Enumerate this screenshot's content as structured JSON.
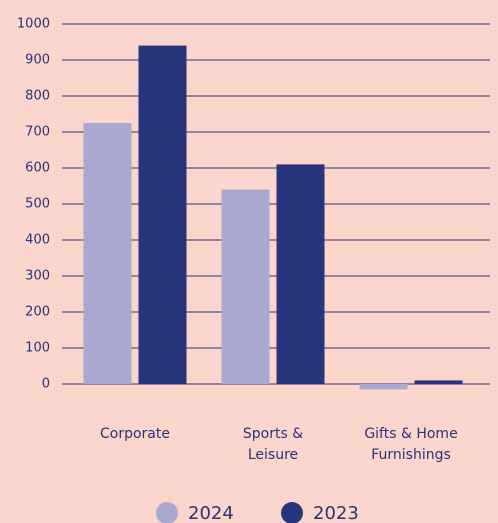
{
  "chart_data": {
    "type": "bar",
    "categories": [
      "Corporate",
      "Sports & Leisure",
      "Gifts & Home Furnishings"
    ],
    "series": [
      {
        "name": "2024",
        "color": "#a9a9d1",
        "values": [
          725,
          540,
          -15
        ]
      },
      {
        "name": "2023",
        "color": "#27337a",
        "values": [
          940,
          610,
          10
        ]
      }
    ],
    "ylim": [
      -20,
      1000
    ],
    "yticks": [
      0,
      100,
      200,
      300,
      400,
      500,
      600,
      700,
      800,
      900,
      1000
    ],
    "grid": true,
    "legend": "bottom"
  }
}
